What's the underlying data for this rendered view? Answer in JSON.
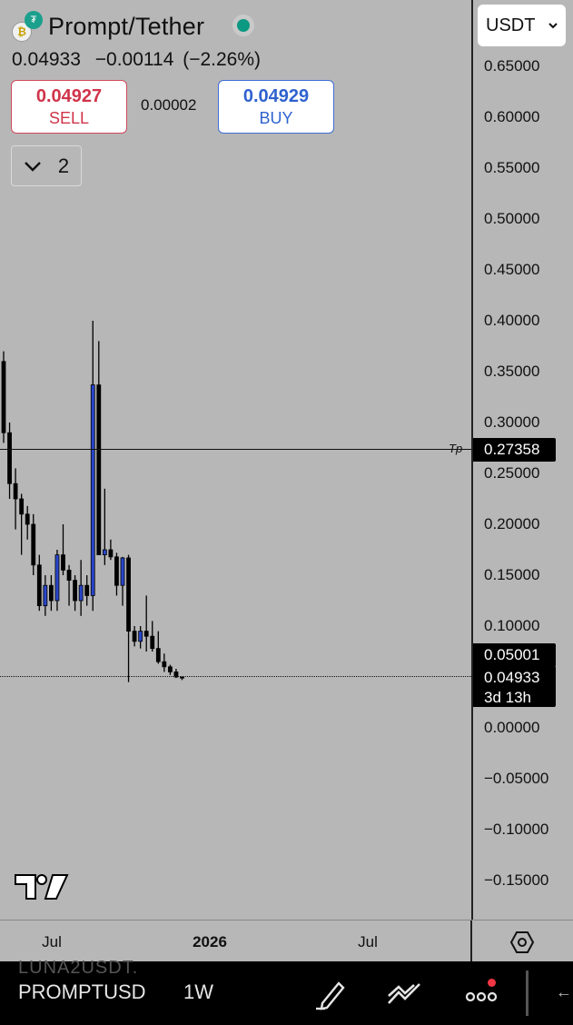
{
  "header": {
    "symbol_title": "Prompt/Tether",
    "last_price": "0.04933",
    "change": "−0.00114",
    "change_pct": "(−2.26%)",
    "status_color": "#0b9981"
  },
  "trade": {
    "sell_price": "0.04927",
    "sell_label": "SELL",
    "spread": "0.00002",
    "buy_price": "0.04929",
    "buy_label": "BUY"
  },
  "indicators": {
    "count": "2"
  },
  "currency": {
    "selected": "USDT"
  },
  "price_scale": {
    "ticks": [
      "0.65000",
      "0.60000",
      "0.55000",
      "0.50000",
      "0.45000",
      "0.40000",
      "0.35000",
      "0.30000",
      "0.25000",
      "0.20000",
      "0.15000",
      "0.10000",
      "0.05000",
      "0.00000",
      "−0.05000",
      "−0.10000",
      "−0.15000"
    ],
    "tp_tag": "0.27358",
    "tp_label": "Tp",
    "tag_high": "0.05001",
    "tag_last": "0.04933",
    "countdown": "3d 13h"
  },
  "time_scale": {
    "labels": [
      {
        "text": "Jul",
        "bold": false
      },
      {
        "text": "2026",
        "bold": true
      },
      {
        "text": "Jul",
        "bold": false
      }
    ]
  },
  "chart_data": {
    "type": "candlestick",
    "interval": "1W",
    "ylim": [
      -0.18,
      0.67
    ],
    "horizontal_lines": [
      {
        "label": "Tp",
        "value": 0.27358
      },
      {
        "label": "last",
        "value": 0.04933
      }
    ],
    "candles": [
      {
        "o": 0.36,
        "h": 0.37,
        "l": 0.28,
        "c": 0.29
      },
      {
        "o": 0.29,
        "h": 0.3,
        "l": 0.225,
        "c": 0.24
      },
      {
        "o": 0.24,
        "h": 0.255,
        "l": 0.195,
        "c": 0.225
      },
      {
        "o": 0.225,
        "h": 0.23,
        "l": 0.17,
        "c": 0.21
      },
      {
        "o": 0.21,
        "h": 0.218,
        "l": 0.185,
        "c": 0.2
      },
      {
        "o": 0.2,
        "h": 0.21,
        "l": 0.15,
        "c": 0.16
      },
      {
        "o": 0.16,
        "h": 0.17,
        "l": 0.115,
        "c": 0.12
      },
      {
        "o": 0.12,
        "h": 0.15,
        "l": 0.11,
        "c": 0.14
      },
      {
        "o": 0.14,
        "h": 0.15,
        "l": 0.115,
        "c": 0.125
      },
      {
        "o": 0.125,
        "h": 0.175,
        "l": 0.115,
        "c": 0.17
      },
      {
        "o": 0.17,
        "h": 0.2,
        "l": 0.15,
        "c": 0.155
      },
      {
        "o": 0.155,
        "h": 0.16,
        "l": 0.12,
        "c": 0.145
      },
      {
        "o": 0.145,
        "h": 0.15,
        "l": 0.115,
        "c": 0.125
      },
      {
        "o": 0.125,
        "h": 0.165,
        "l": 0.11,
        "c": 0.14
      },
      {
        "o": 0.14,
        "h": 0.15,
        "l": 0.12,
        "c": 0.13
      },
      {
        "o": 0.13,
        "h": 0.4,
        "l": 0.115,
        "c": 0.337
      },
      {
        "o": 0.337,
        "h": 0.38,
        "l": 0.17,
        "c": 0.17
      },
      {
        "o": 0.17,
        "h": 0.235,
        "l": 0.16,
        "c": 0.175
      },
      {
        "o": 0.175,
        "h": 0.185,
        "l": 0.165,
        "c": 0.168
      },
      {
        "o": 0.168,
        "h": 0.172,
        "l": 0.13,
        "c": 0.14
      },
      {
        "o": 0.14,
        "h": 0.168,
        "l": 0.12,
        "c": 0.167
      },
      {
        "o": 0.167,
        "h": 0.17,
        "l": 0.045,
        "c": 0.095
      },
      {
        "o": 0.095,
        "h": 0.1,
        "l": 0.08,
        "c": 0.085
      },
      {
        "o": 0.085,
        "h": 0.1,
        "l": 0.078,
        "c": 0.095
      },
      {
        "o": 0.095,
        "h": 0.13,
        "l": 0.075,
        "c": 0.09
      },
      {
        "o": 0.09,
        "h": 0.105,
        "l": 0.075,
        "c": 0.078
      },
      {
        "o": 0.078,
        "h": 0.095,
        "l": 0.063,
        "c": 0.065
      },
      {
        "o": 0.065,
        "h": 0.073,
        "l": 0.055,
        "c": 0.06
      },
      {
        "o": 0.06,
        "h": 0.062,
        "l": 0.052,
        "c": 0.055
      },
      {
        "o": 0.055,
        "h": 0.058,
        "l": 0.049,
        "c": 0.05
      },
      {
        "o": 0.05,
        "h": 0.05,
        "l": 0.047,
        "c": 0.049
      }
    ],
    "colors": {
      "up": "#2846c9",
      "down": "#000000"
    }
  },
  "bottom_bar": {
    "ghost_symbol": "LUNA2USDT.",
    "symbol": "PROMPTUSD",
    "interval": "1W",
    "back_glyph": "←"
  }
}
